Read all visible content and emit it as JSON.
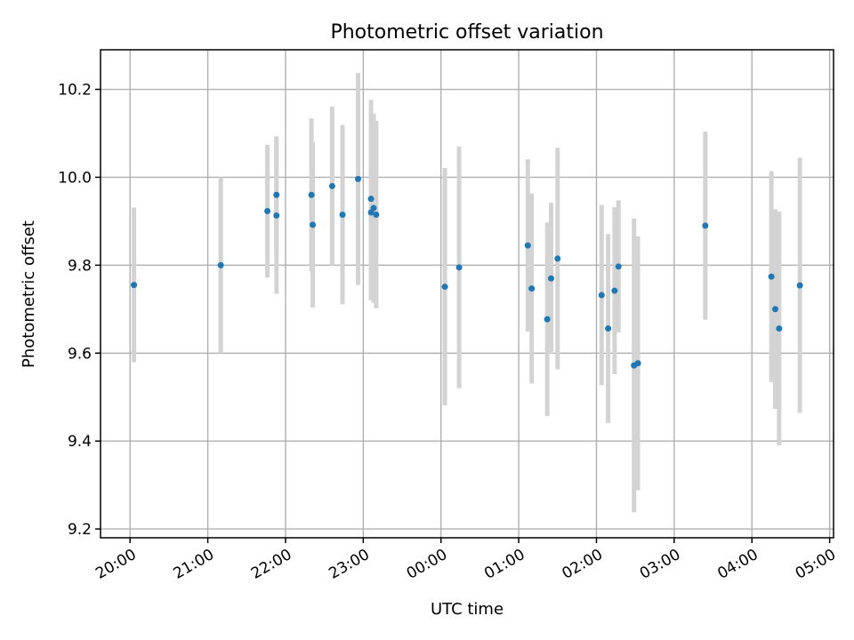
{
  "chart_data": {
    "type": "scatter",
    "title": "Photometric offset variation",
    "xlabel": "UTC time",
    "ylabel": "Photometric offset",
    "x_ticks": [
      "20:00",
      "21:00",
      "22:00",
      "23:00",
      "00:00",
      "01:00",
      "02:00",
      "03:00",
      "04:00",
      "05:00"
    ],
    "x_tick_hours": [
      0,
      1,
      2,
      3,
      4,
      5,
      6,
      7,
      8,
      9
    ],
    "y_ticks": [
      "9.2",
      "9.4",
      "9.6",
      "9.8",
      "10.0",
      "10.2"
    ],
    "y_tick_values": [
      9.2,
      9.4,
      9.6,
      9.8,
      10.0,
      10.2
    ],
    "xlim_hours_after_2000": [
      -0.38,
      9.05
    ],
    "ylim": [
      9.18,
      10.29
    ],
    "grid": true,
    "point_color": "#1f77b4",
    "errorbar_color": "#d3d3d3",
    "series": [
      {
        "points": [
          {
            "t": "20:03",
            "y": 9.755,
            "err": 0.176
          },
          {
            "t": "21:10",
            "y": 9.8,
            "err": 0.2
          },
          {
            "t": "21:46",
            "y": 9.923,
            "err": 0.151
          },
          {
            "t": "21:53",
            "y": 9.96,
            "err": 0.133
          },
          {
            "t": "21:53",
            "y": 9.913,
            "err": 0.178
          },
          {
            "t": "22:20",
            "y": 9.96,
            "err": 0.174
          },
          {
            "t": "22:21",
            "y": 9.892,
            "err": 0.188
          },
          {
            "t": "22:36",
            "y": 9.98,
            "err": 0.181
          },
          {
            "t": "22:44",
            "y": 9.915,
            "err": 0.204
          },
          {
            "t": "22:56",
            "y": 9.996,
            "err": 0.241
          },
          {
            "t": "23:06",
            "y": 9.951,
            "err": 0.225
          },
          {
            "t": "23:06",
            "y": 9.92,
            "err": 0.2
          },
          {
            "t": "23:08",
            "y": 9.93,
            "err": 0.215
          },
          {
            "t": "23:10",
            "y": 9.915,
            "err": 0.213
          },
          {
            "t": "00:03",
            "y": 9.751,
            "err": 0.27
          },
          {
            "t": "00:14",
            "y": 9.795,
            "err": 0.275
          },
          {
            "t": "01:07",
            "y": 9.845,
            "err": 0.196
          },
          {
            "t": "01:10",
            "y": 9.747,
            "err": 0.216
          },
          {
            "t": "01:22",
            "y": 9.677,
            "err": 0.22
          },
          {
            "t": "01:25",
            "y": 9.77,
            "err": 0.172
          },
          {
            "t": "01:30",
            "y": 9.815,
            "err": 0.252
          },
          {
            "t": "02:04",
            "y": 9.732,
            "err": 0.205
          },
          {
            "t": "02:09",
            "y": 9.656,
            "err": 0.215
          },
          {
            "t": "02:14",
            "y": 9.742,
            "err": 0.19
          },
          {
            "t": "02:17",
            "y": 9.797,
            "err": 0.15
          },
          {
            "t": "02:29",
            "y": 9.572,
            "err": 0.334
          },
          {
            "t": "02:32",
            "y": 9.577,
            "err": 0.289
          },
          {
            "t": "03:24",
            "y": 9.89,
            "err": 0.214
          },
          {
            "t": "04:15",
            "y": 9.774,
            "err": 0.24
          },
          {
            "t": "04:18",
            "y": 9.7,
            "err": 0.227
          },
          {
            "t": "04:21",
            "y": 9.656,
            "err": 0.266
          },
          {
            "t": "04:37",
            "y": 9.754,
            "err": 0.29
          }
        ]
      }
    ]
  }
}
